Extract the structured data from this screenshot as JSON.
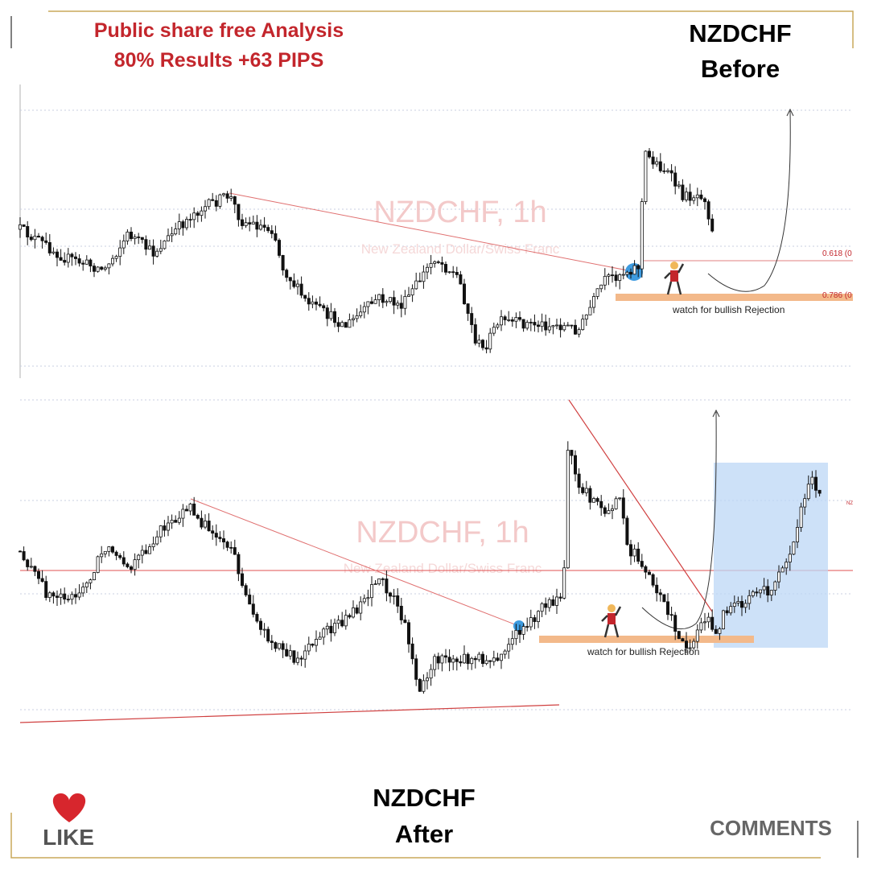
{
  "header": {
    "title_line1": "Public share free Analysis",
    "title_line2": "80% Results +63 PIPS"
  },
  "before_label": {
    "pair": "NZDCHF",
    "state": "Before"
  },
  "top_chart": {
    "watermark": "NZDCHF, 1h",
    "subtitle": "New Zealand Dollar/Swiss Franc",
    "fib_levels": [
      "0.618 (0",
      "0.786 (0"
    ],
    "annotation": "watch for bullish Rejection"
  },
  "bottom_chart": {
    "watermark": "NZDCHF, 1h",
    "subtitle": "New Zealand Dollar/Swiss Franc",
    "annotation": "watch for bullish Rejection",
    "axis_tag": "NZ"
  },
  "after_label": {
    "pair": "NZDCHF",
    "state": "After"
  },
  "footer": {
    "like": "LIKE",
    "comments": "COMMENTS"
  }
}
